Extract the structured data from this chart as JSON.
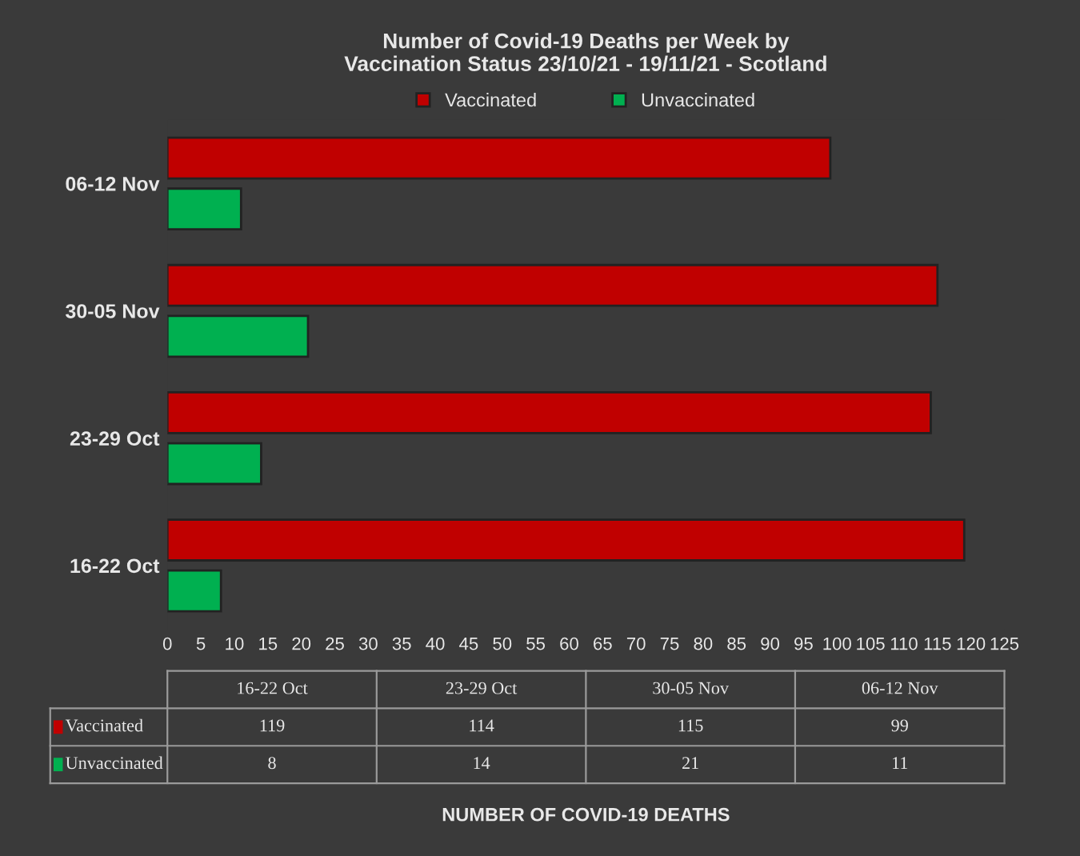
{
  "chart_data": [
    {
      "type": "bar",
      "orientation": "horizontal",
      "title": "Number of Covid-19 Deaths per Week by\nVaccination Status 23/10/21 - 19/11/21 - Scotland",
      "categories": [
        "06-12 Nov",
        "30-05 Nov",
        "23-29 Oct",
        "16-22 Oct"
      ],
      "series": [
        {
          "name": "Vaccinated",
          "color": "#c00000",
          "values": [
            99,
            115,
            114,
            119
          ]
        },
        {
          "name": "Unvaccinated",
          "color": "#00b050",
          "values": [
            11,
            21,
            14,
            8
          ]
        }
      ],
      "xlim": [
        0,
        125
      ],
      "xticks": [
        0,
        5,
        10,
        15,
        20,
        25,
        30,
        35,
        40,
        45,
        50,
        55,
        60,
        65,
        70,
        75,
        80,
        85,
        90,
        95,
        100,
        105,
        110,
        115,
        120,
        125
      ],
      "grid": false,
      "legend": "top"
    },
    {
      "type": "other",
      "categories": [
        "16-22 Oct",
        "23-29 Oct",
        "30-05 Nov",
        "06-12 Nov"
      ],
      "series": [
        {
          "name": "Vaccinated",
          "color": "#c00000",
          "values": [
            119,
            114,
            115,
            99
          ]
        },
        {
          "name": "Unvaccinated",
          "color": "#00b050",
          "values": [
            8,
            14,
            21,
            11
          ]
        }
      ],
      "data_labels": true,
      "annotations": [
        "NUMBER OF COVID-19 DEATHS"
      ]
    }
  ]
}
